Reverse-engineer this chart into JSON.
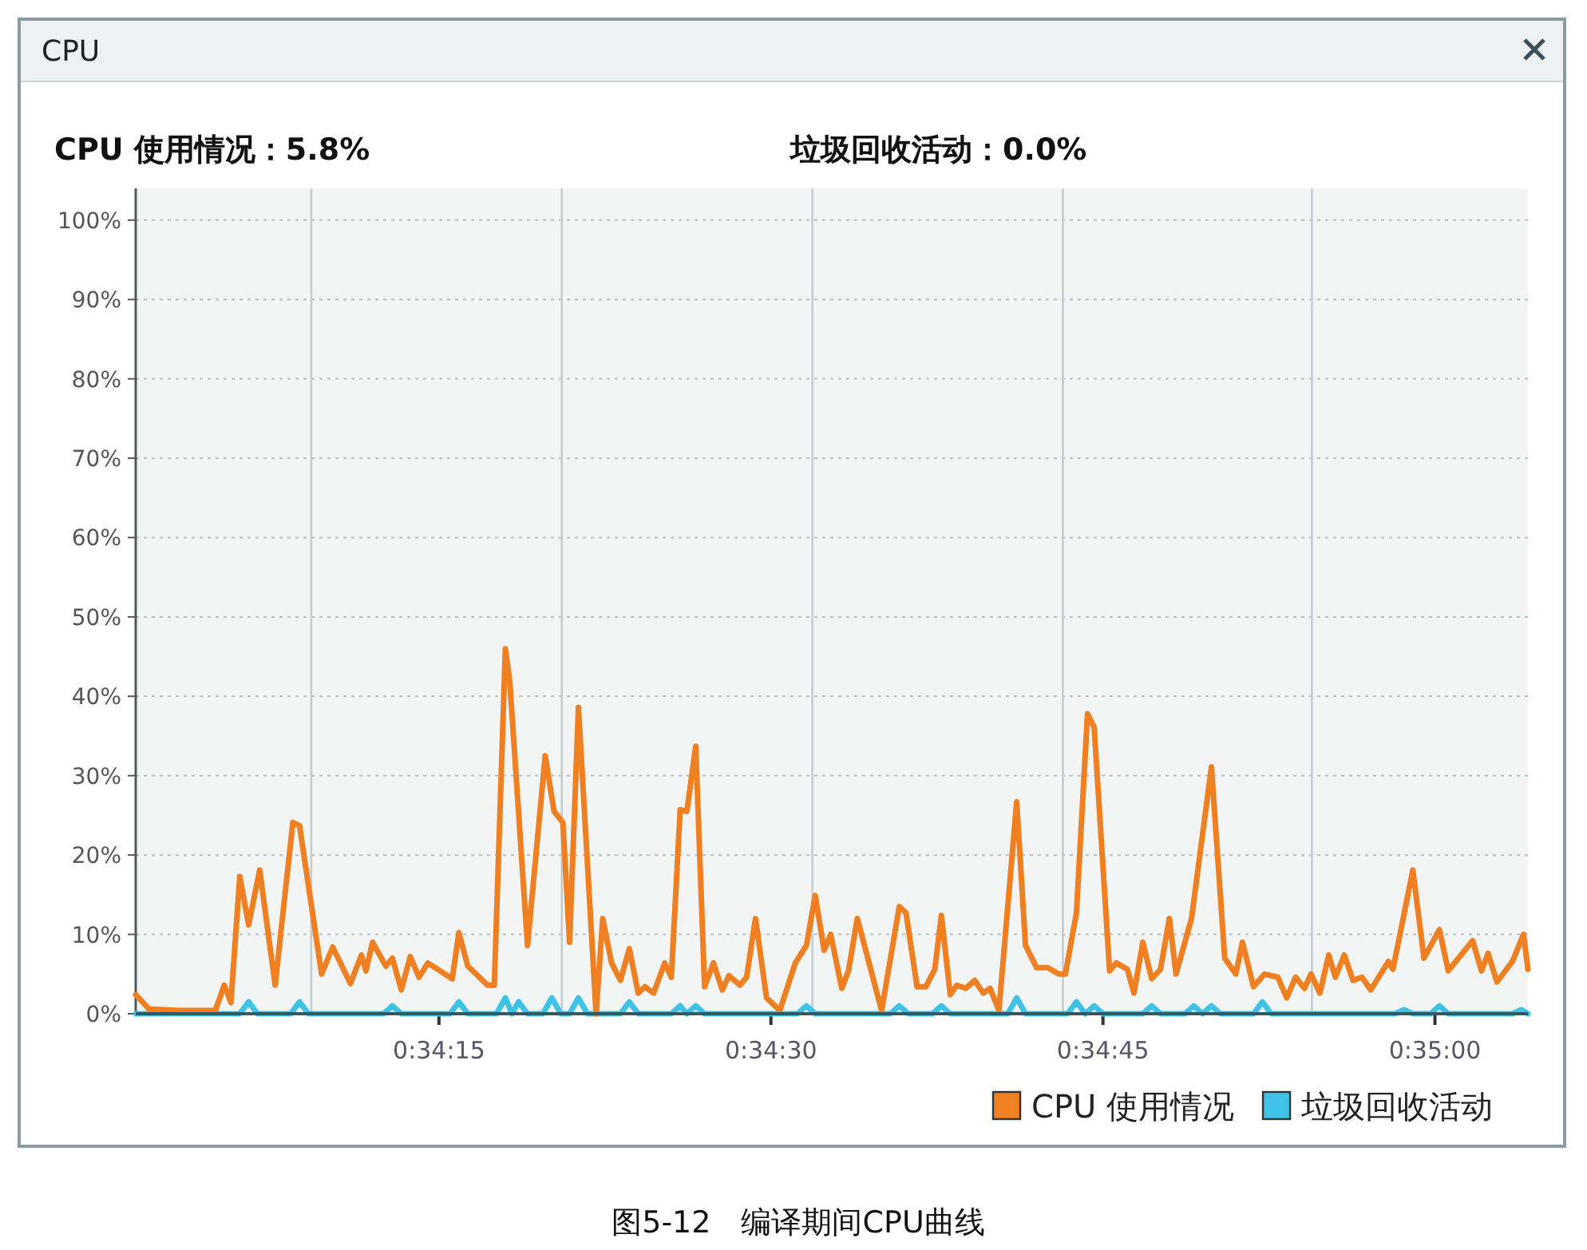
{
  "chart_data": {
    "type": "line",
    "title": "CPU",
    "annotations": [
      "CPU 使用情况：5.8%",
      "垃圾回收活动：0.0%",
      "图5-12　编译期间CPU曲线"
    ],
    "xlim": [
      0.567028,
      0.5845
    ],
    "xticks": [
      {
        "value": 0.569231,
        "label": null
      },
      {
        "value": 0.570834,
        "label": "0:34:15"
      },
      {
        "value": 0.572375,
        "label": null
      },
      {
        "value": 0.575,
        "label": "0:34:30"
      },
      {
        "value": 0.57552,
        "label": null
      },
      {
        "value": 0.578664,
        "label": null
      },
      {
        "value": 0.579167,
        "label": "0:34:45"
      },
      {
        "value": 0.581789,
        "label": null
      },
      {
        "value": 0.583333,
        "label": "0:35:00"
      }
    ],
    "ylim": [
      0,
      104
    ],
    "yticks": [
      {
        "value": 0,
        "label": "0%"
      },
      {
        "value": 10,
        "label": "10%"
      },
      {
        "value": 20,
        "label": "20%"
      },
      {
        "value": 30,
        "label": "30%"
      },
      {
        "value": 40,
        "label": "40%"
      },
      {
        "value": 50,
        "label": "50%"
      },
      {
        "value": 60,
        "label": "60%"
      },
      {
        "value": 70,
        "label": "70%"
      },
      {
        "value": 80,
        "label": "80%"
      },
      {
        "value": 90,
        "label": "90%"
      },
      {
        "value": 100,
        "label": "100%"
      }
    ],
    "grid": true,
    "legend": "bottom right",
    "marker": "none",
    "line_style": "solid",
    "series": [
      {
        "name": "CPU 使用情况",
        "color": "#f07f22",
        "x": [
          0.567028,
          0.567195,
          0.567584,
          0.568028,
          0.568139,
          0.568223,
          0.568334,
          0.568445,
          0.568584,
          0.568778,
          0.569,
          0.569084,
          0.569361,
          0.5695,
          0.569723,
          0.569861,
          0.569917,
          0.57,
          0.570167,
          0.57025,
          0.570361,
          0.570473,
          0.570584,
          0.570695,
          0.571,
          0.571084,
          0.571195,
          0.571445,
          0.571528,
          0.571667,
          0.571723,
          0.571945,
          0.572167,
          0.572278,
          0.572389,
          0.572473,
          0.572584,
          0.572806,
          0.572889,
          0.573,
          0.573111,
          0.573223,
          0.573334,
          0.573417,
          0.573528,
          0.573667,
          0.57375,
          0.573861,
          0.573945,
          0.574056,
          0.574167,
          0.574278,
          0.574389,
          0.574473,
          0.574611,
          0.574695,
          0.574806,
          0.574945,
          0.575111,
          0.575306,
          0.575445,
          0.575556,
          0.575667,
          0.57575,
          0.575889,
          0.575973,
          0.576084,
          0.576389,
          0.576611,
          0.576695,
          0.576834,
          0.576945,
          0.577056,
          0.577139,
          0.57725,
          0.577334,
          0.577445,
          0.577556,
          0.577667,
          0.57775,
          0.577861,
          0.578084,
          0.578195,
          0.578334,
          0.578473,
          0.578611,
          0.578695,
          0.578834,
          0.578973,
          0.579056,
          0.57925,
          0.579334,
          0.579473,
          0.579556,
          0.579667,
          0.579778,
          0.579889,
          0.58,
          0.580084,
          0.580278,
          0.580528,
          0.580695,
          0.580834,
          0.580917,
          0.581056,
          0.581195,
          0.581361,
          0.581473,
          0.581584,
          0.581695,
          0.581778,
          0.581889,
          0.582,
          0.582084,
          0.582195,
          0.582306,
          0.582417,
          0.582528,
          0.58275,
          0.582806,
          0.583056,
          0.583195,
          0.583389,
          0.5835,
          0.583806,
          0.583917,
          0.584,
          0.584111,
          0.584306,
          0.584445,
          0.5845
        ],
        "values": [
          2.4,
          0.6,
          0.4,
          0.4,
          3.6,
          1.4,
          17.3,
          11.2,
          18.1,
          3.6,
          24.1,
          23.7,
          5.0,
          8.4,
          3.8,
          7.4,
          5.4,
          9.0,
          6.0,
          7.0,
          3.0,
          7.2,
          4.6,
          6.4,
          4.4,
          10.2,
          6.0,
          3.6,
          3.6,
          46.0,
          41.8,
          8.6,
          32.5,
          25.5,
          24.1,
          9.0,
          38.6,
          0,
          12.0,
          6.4,
          4.2,
          8.2,
          2.6,
          3.4,
          2.6,
          6.4,
          4.6,
          25.7,
          25.5,
          33.7,
          3.4,
          6.4,
          3.0,
          4.8,
          3.6,
          4.6,
          12.0,
          2.0,
          0.4,
          6.4,
          8.6,
          14.9,
          8.0,
          10.0,
          3.2,
          5.4,
          12.0,
          0.4,
          13.5,
          12.7,
          3.4,
          3.4,
          5.6,
          12.4,
          2.4,
          3.6,
          3.2,
          4.2,
          2.6,
          3.2,
          0.4,
          26.7,
          8.6,
          5.8,
          5.8,
          5.0,
          5.0,
          12.7,
          37.8,
          36.1,
          5.4,
          6.4,
          5.6,
          2.6,
          9.0,
          4.4,
          5.6,
          12.0,
          5.0,
          12.0,
          31.1,
          7.0,
          5.0,
          9.0,
          3.4,
          5.0,
          4.6,
          2.0,
          4.6,
          3.2,
          5.0,
          2.6,
          7.4,
          4.6,
          7.4,
          4.2,
          4.6,
          3.0,
          6.6,
          5.6,
          18.1,
          7.0,
          10.6,
          5.4,
          9.2,
          5.4,
          7.6,
          4.0,
          6.6,
          10.0,
          5.6
        ]
      },
      {
        "name": "垃圾回收活动",
        "color": "#3ec3e6",
        "x": [
          0.567028,
          0.568334,
          0.568445,
          0.568556,
          0.568973,
          0.569084,
          0.569195,
          0.570139,
          0.57025,
          0.570361,
          0.570973,
          0.571084,
          0.571195,
          0.571556,
          0.571667,
          0.57175,
          0.571834,
          0.571945,
          0.572139,
          0.57225,
          0.572361,
          0.572473,
          0.572584,
          0.572695,
          0.573111,
          0.573223,
          0.573334,
          0.57375,
          0.573861,
          0.573945,
          0.574056,
          0.574167,
          0.575334,
          0.575445,
          0.575556,
          0.5765,
          0.576611,
          0.576723,
          0.577028,
          0.577139,
          0.57725,
          0.577973,
          0.578084,
          0.578195,
          0.578723,
          0.578834,
          0.578945,
          0.579056,
          0.579167,
          0.579667,
          0.579778,
          0.579889,
          0.580195,
          0.580306,
          0.580417,
          0.580528,
          0.580639,
          0.581056,
          0.581167,
          0.581278,
          0.582834,
          0.582945,
          0.583056,
          0.583278,
          0.583389,
          0.5835,
          0.584306,
          0.584417,
          0.5845
        ],
        "values": [
          0,
          0,
          1.5,
          0,
          0,
          1.5,
          0,
          0,
          1,
          0,
          0,
          1.5,
          0,
          0,
          2,
          0,
          1.5,
          0,
          0,
          2,
          0,
          0,
          2,
          0,
          0,
          1.5,
          0,
          0,
          1,
          0,
          1,
          0,
          0,
          1,
          0,
          0,
          1,
          0,
          0,
          1,
          0,
          0,
          2,
          0,
          0,
          1.5,
          0,
          1,
          0,
          0,
          1,
          0,
          0,
          1,
          0,
          1,
          0,
          0,
          1.5,
          0,
          0,
          0.5,
          0,
          0,
          1,
          0,
          0,
          0.5,
          0
        ]
      }
    ]
  }
}
